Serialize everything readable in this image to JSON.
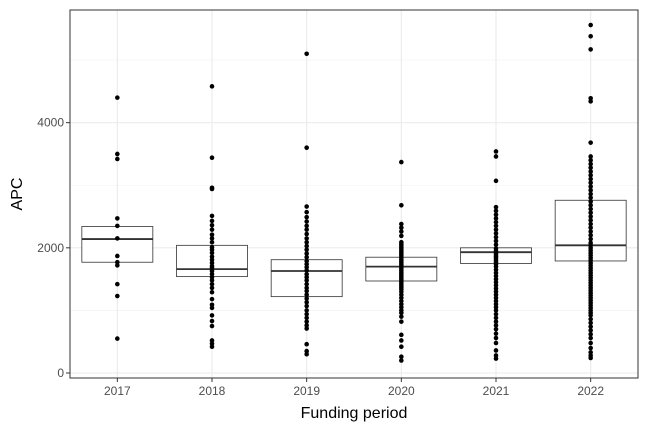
{
  "chart_data": {
    "type": "boxplot",
    "title": "",
    "xlabel": "Funding period",
    "ylabel": "APC",
    "ylim": [
      -80,
      5800
    ],
    "yticks": [
      0,
      2000,
      4000
    ],
    "grid": true,
    "categories": [
      "2017",
      "2018",
      "2019",
      "2020",
      "2021",
      "2022"
    ],
    "boxes": [
      {
        "category": "2017",
        "q1": 1770,
        "median": 2140,
        "q3": 2340
      },
      {
        "category": "2018",
        "q1": 1540,
        "median": 1660,
        "q3": 2040
      },
      {
        "category": "2019",
        "q1": 1220,
        "median": 1630,
        "q3": 1810
      },
      {
        "category": "2020",
        "q1": 1470,
        "median": 1700,
        "q3": 1850
      },
      {
        "category": "2021",
        "q1": 1750,
        "median": 1930,
        "q3": 2000
      },
      {
        "category": "2022",
        "q1": 1790,
        "median": 2040,
        "q3": 2760
      }
    ],
    "points": {
      "2017": [
        4400,
        3500,
        3420,
        2470,
        2350,
        2150,
        1870,
        1770,
        1720,
        1420,
        1230,
        550
      ],
      "2018": [
        4580,
        3440,
        2960,
        2940,
        2510,
        2430,
        2360,
        2290,
        2210,
        2150,
        2090,
        2010,
        1970,
        1920,
        1860,
        1810,
        1760,
        1710,
        1680,
        1630,
        1580,
        1530,
        1480,
        1420,
        1360,
        1290,
        1180,
        1090,
        1040,
        920,
        830,
        750,
        520,
        470,
        420
      ],
      "2019": [
        5100,
        3600,
        2660,
        2570,
        2490,
        2420,
        2350,
        2290,
        2220,
        2150,
        2090,
        2030,
        1970,
        1910,
        1850,
        1790,
        1740,
        1690,
        1640,
        1580,
        1530,
        1480,
        1420,
        1360,
        1310,
        1250,
        1190,
        1130,
        1070,
        1000,
        940,
        880,
        820,
        760,
        710,
        460,
        350,
        300
      ],
      "2020": [
        3370,
        2680,
        2380,
        2320,
        2260,
        2190,
        2090,
        2060,
        2030,
        2000,
        1970,
        1940,
        1910,
        1880,
        1850,
        1820,
        1790,
        1760,
        1730,
        1700,
        1670,
        1640,
        1610,
        1580,
        1550,
        1520,
        1490,
        1460,
        1430,
        1400,
        1370,
        1340,
        1300,
        1250,
        1200,
        1150,
        1100,
        1050,
        1000,
        960,
        900,
        820,
        610,
        520,
        420,
        260,
        200
      ],
      "2021": [
        3540,
        3460,
        3070,
        2650,
        2590,
        2530,
        2470,
        2410,
        2350,
        2290,
        2230,
        2170,
        2110,
        2050,
        1990,
        1950,
        1920,
        1890,
        1860,
        1830,
        1800,
        1770,
        1740,
        1700,
        1650,
        1600,
        1550,
        1500,
        1450,
        1400,
        1350,
        1300,
        1250,
        1200,
        1150,
        1100,
        1050,
        1000,
        940,
        880,
        820,
        760,
        700,
        630,
        560,
        480,
        360,
        280,
        230
      ],
      "2022": [
        5560,
        5380,
        5170,
        4390,
        4340,
        3680,
        3460,
        3400,
        3340,
        3280,
        3220,
        3160,
        3100,
        3040,
        2980,
        2920,
        2860,
        2800,
        2740,
        2680,
        2620,
        2560,
        2500,
        2440,
        2380,
        2320,
        2260,
        2200,
        2140,
        2080,
        2040,
        2000,
        1960,
        1920,
        1880,
        1840,
        1800,
        1760,
        1720,
        1680,
        1640,
        1600,
        1560,
        1520,
        1480,
        1440,
        1400,
        1360,
        1320,
        1280,
        1240,
        1200,
        1160,
        1120,
        1080,
        1040,
        1000,
        960,
        920,
        860,
        800,
        740,
        680,
        620,
        560,
        480,
        400,
        330,
        280,
        240
      ]
    }
  }
}
